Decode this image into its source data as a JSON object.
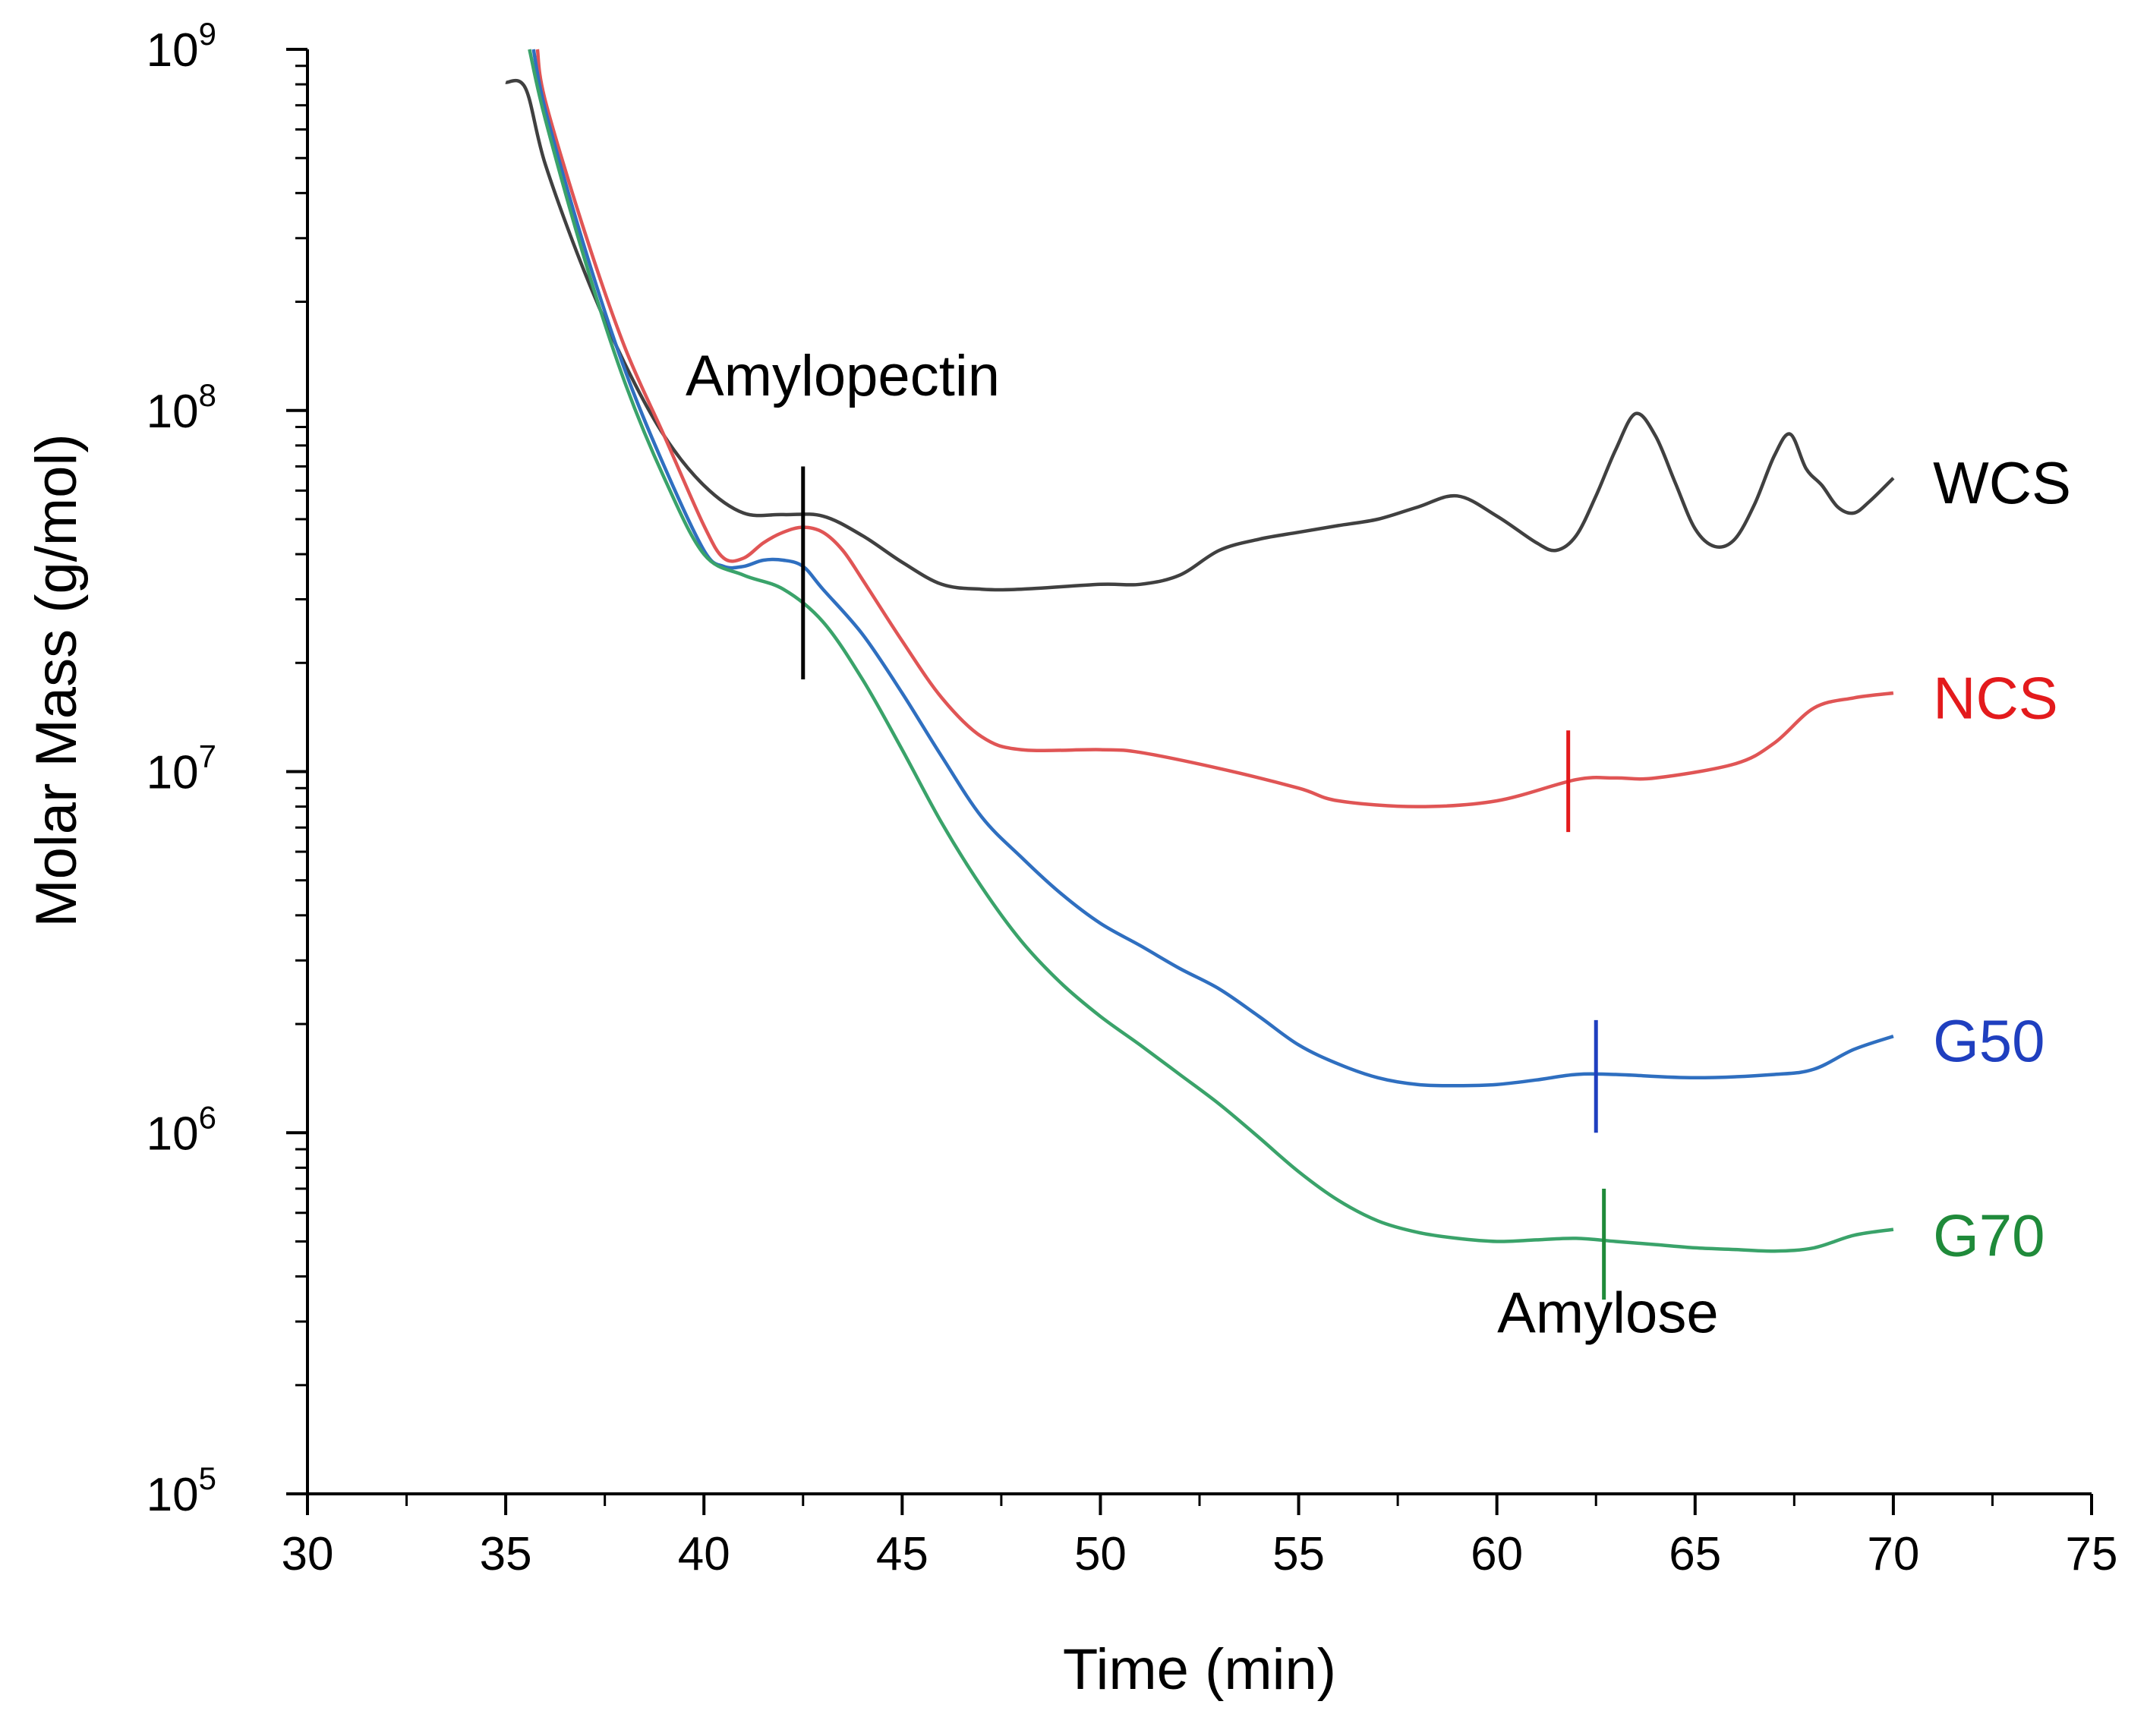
{
  "chart_data": {
    "type": "line",
    "title": "",
    "xlabel": "Time (min)",
    "ylabel": "Molar Mass (g/mol)",
    "xlim": [
      30,
      75
    ],
    "ylim_log10": [
      5,
      9
    ],
    "yscale": "log",
    "x_ticks": [
      "30",
      "35",
      "40",
      "45",
      "50",
      "55",
      "60",
      "65",
      "70",
      "75"
    ],
    "y_ticks": [
      {
        "base": "10",
        "exp": "5"
      },
      {
        "base": "10",
        "exp": "6"
      },
      {
        "base": "10",
        "exp": "7"
      },
      {
        "base": "10",
        "exp": "8"
      },
      {
        "base": "10",
        "exp": "9"
      }
    ],
    "series": [
      {
        "name": "WCS",
        "color": "#404040",
        "label_color": "#000000",
        "points": [
          [
            35,
            810000000.0
          ],
          [
            35.5,
            780000000.0
          ],
          [
            36,
            480000000.0
          ],
          [
            37,
            240000000.0
          ],
          [
            38,
            135000000.0
          ],
          [
            39,
            85000000.0
          ],
          [
            40,
            62000000.0
          ],
          [
            41,
            52000000.0
          ],
          [
            42,
            51500000.0
          ],
          [
            43,
            51000000.0
          ],
          [
            44,
            45000000.0
          ],
          [
            45,
            38000000.0
          ],
          [
            46,
            33000000.0
          ],
          [
            47,
            32000000.0
          ],
          [
            48,
            32000000.0
          ],
          [
            50,
            33000000.0
          ],
          [
            51,
            33000000.0
          ],
          [
            52,
            35000000.0
          ],
          [
            53,
            41000000.0
          ],
          [
            54,
            44000000.0
          ],
          [
            55,
            46000000.0
          ],
          [
            56,
            48000000.0
          ],
          [
            57,
            50000000.0
          ],
          [
            58,
            54000000.0
          ],
          [
            59,
            58000000.0
          ],
          [
            60,
            51000000.0
          ],
          [
            61,
            43000000.0
          ],
          [
            61.5,
            41000000.0
          ],
          [
            62,
            45000000.0
          ],
          [
            62.5,
            58000000.0
          ],
          [
            63,
            78000000.0
          ],
          [
            63.5,
            98000000.0
          ],
          [
            64,
            85000000.0
          ],
          [
            64.5,
            63000000.0
          ],
          [
            65,
            47000000.0
          ],
          [
            65.5,
            42000000.0
          ],
          [
            66,
            44000000.0
          ],
          [
            66.5,
            55000000.0
          ],
          [
            67,
            75000000.0
          ],
          [
            67.4,
            86000000.0
          ],
          [
            67.8,
            69000000.0
          ],
          [
            68.2,
            62000000.0
          ],
          [
            68.6,
            54000000.0
          ],
          [
            69,
            52000000.0
          ],
          [
            69.4,
            56000000.0
          ],
          [
            70,
            65000000.0
          ]
        ]
      },
      {
        "name": "NCS",
        "color": "#e05555",
        "label_color": "#e31a1c",
        "points": [
          [
            35.8,
            1000000000.0
          ],
          [
            36,
            720000000.0
          ],
          [
            37,
            310000000.0
          ],
          [
            38,
            150000000.0
          ],
          [
            39,
            85000000.0
          ],
          [
            40,
            48000000.0
          ],
          [
            40.5,
            39000000.0
          ],
          [
            41,
            39000000.0
          ],
          [
            41.5,
            43000000.0
          ],
          [
            42,
            46000000.0
          ],
          [
            42.5,
            47500000.0
          ],
          [
            43,
            46000000.0
          ],
          [
            43.5,
            41000000.0
          ],
          [
            44,
            34000000.0
          ],
          [
            45,
            23000000.0
          ],
          [
            46,
            16000000.0
          ],
          [
            47,
            12500000.0
          ],
          [
            48,
            11500000.0
          ],
          [
            50,
            11500000.0
          ],
          [
            51,
            11300000.0
          ],
          [
            53,
            10200000.0
          ],
          [
            55,
            9000000.0
          ],
          [
            56,
            8300000.0
          ],
          [
            58,
            8000000.0
          ],
          [
            60,
            8300000.0
          ],
          [
            62,
            9500000.0
          ],
          [
            63,
            9600000.0
          ],
          [
            64,
            9600000.0
          ],
          [
            66,
            10500000.0
          ],
          [
            67,
            12000000.0
          ],
          [
            68,
            15000000.0
          ],
          [
            69,
            16000000.0
          ],
          [
            70,
            16500000.0
          ]
        ]
      },
      {
        "name": "G50",
        "color": "#2f6fc0",
        "label_color": "#1f3fbf",
        "points": [
          [
            35.7,
            1000000000.0
          ],
          [
            36,
            680000000.0
          ],
          [
            37,
            280000000.0
          ],
          [
            38,
            130000000.0
          ],
          [
            39,
            70000000.0
          ],
          [
            40,
            41000000.0
          ],
          [
            40.5,
            37000000.0
          ],
          [
            41,
            37000000.0
          ],
          [
            41.5,
            38500000.0
          ],
          [
            42,
            38500000.0
          ],
          [
            42.5,
            37000000.0
          ],
          [
            43,
            32000000.0
          ],
          [
            44,
            24000000.0
          ],
          [
            45,
            16500000.0
          ],
          [
            46,
            11000000.0
          ],
          [
            47,
            7500000.0
          ],
          [
            48,
            5800000.0
          ],
          [
            49,
            4600000.0
          ],
          [
            50,
            3800000.0
          ],
          [
            51,
            3300000.0
          ],
          [
            52,
            2850000.0
          ],
          [
            53,
            2500000.0
          ],
          [
            54,
            2100000.0
          ],
          [
            55,
            1750000.0
          ],
          [
            56,
            1550000.0
          ],
          [
            57,
            1420000.0
          ],
          [
            58,
            1360000.0
          ],
          [
            59,
            1350000.0
          ],
          [
            60,
            1360000.0
          ],
          [
            61,
            1400000.0
          ],
          [
            62,
            1450000.0
          ],
          [
            63,
            1450000.0
          ],
          [
            65,
            1420000.0
          ],
          [
            67,
            1450000.0
          ],
          [
            68,
            1500000.0
          ],
          [
            69,
            1700000.0
          ],
          [
            70,
            1850000.0
          ]
        ]
      },
      {
        "name": "G70",
        "color": "#3aa36a",
        "label_color": "#1f8a3a",
        "points": [
          [
            35.6,
            1000000000.0
          ],
          [
            36,
            640000000.0
          ],
          [
            37,
            260000000.0
          ],
          [
            38,
            120000000.0
          ],
          [
            39,
            65000000.0
          ],
          [
            40,
            40000000.0
          ],
          [
            41,
            35000000.0
          ],
          [
            42,
            32000000.0
          ],
          [
            43,
            26000000.0
          ],
          [
            44,
            18000000.0
          ],
          [
            45,
            11500000.0
          ],
          [
            46,
            7200000.0
          ],
          [
            47,
            4800000.0
          ],
          [
            48,
            3400000.0
          ],
          [
            49,
            2600000.0
          ],
          [
            50,
            2100000.0
          ],
          [
            51,
            1750000.0
          ],
          [
            52,
            1450000.0
          ],
          [
            53,
            1200000.0
          ],
          [
            54,
            970000.0
          ],
          [
            55,
            780000.0
          ],
          [
            56,
            650000.0
          ],
          [
            57,
            570000.0
          ],
          [
            58,
            530000.0
          ],
          [
            59,
            510000.0
          ],
          [
            60,
            500000.0
          ],
          [
            61,
            505000.0
          ],
          [
            62,
            510000.0
          ],
          [
            63,
            500000.0
          ],
          [
            64,
            490000.0
          ],
          [
            65,
            480000.0
          ],
          [
            66,
            475000.0
          ],
          [
            67,
            470000.0
          ],
          [
            68,
            480000.0
          ],
          [
            69,
            520000.0
          ],
          [
            70,
            540000.0
          ]
        ]
      }
    ],
    "markers": [
      {
        "series": "Amylopectin",
        "x": 42.5,
        "y_from": 18000000.0,
        "y_to": 70000000.0,
        "color": "#000000"
      },
      {
        "series": "NCS",
        "x": 61.8,
        "y_from": 6800000.0,
        "y_to": 13000000.0,
        "color": "#e31a1c"
      },
      {
        "series": "G50",
        "x": 62.5,
        "y_from": 1000000.0,
        "y_to": 2050000.0,
        "color": "#1f3fbf"
      },
      {
        "series": "G70",
        "x": 62.7,
        "y_from": 345000.0,
        "y_to": 700000.0,
        "color": "#1f8a3a"
      }
    ],
    "annotations": [
      {
        "name": "amylopectin",
        "text": "Amylopectin",
        "x": 43.5,
        "y": 110000000.0
      },
      {
        "name": "amylose",
        "text": "Amylose",
        "x": 62.8,
        "y": 280000.0
      }
    ],
    "label_positions": [
      {
        "name": "WCS",
        "x": 71,
        "y": 63000000.0
      },
      {
        "name": "NCS",
        "x": 71,
        "y": 16000000.0
      },
      {
        "name": "G50",
        "x": 71,
        "y": 1800000.0
      },
      {
        "name": "G70",
        "x": 71,
        "y": 520000.0
      }
    ]
  }
}
